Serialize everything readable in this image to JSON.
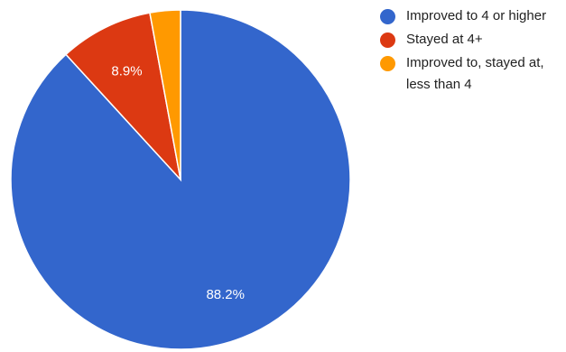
{
  "chart_data": {
    "type": "pie",
    "categories": [
      "Improved to 4 or higher",
      "Stayed at 4+",
      "Improved to, stayed at, less than 4"
    ],
    "values": [
      88.2,
      8.9,
      2.9
    ],
    "colors": [
      "#3366cc",
      "#dc3912",
      "#ff9900"
    ],
    "data_labels": [
      "88.2%",
      "8.9%",
      ""
    ],
    "legend_position": "right",
    "title": "",
    "start_angle_deg": 0,
    "direction": "clockwise"
  },
  "legend": {
    "items": [
      {
        "label": "Improved to 4 or higher",
        "color": "#3366cc"
      },
      {
        "label": "Stayed at 4+",
        "color": "#dc3912"
      },
      {
        "label": "Improved to, stayed at, less than 4",
        "color": "#ff9900"
      }
    ]
  }
}
